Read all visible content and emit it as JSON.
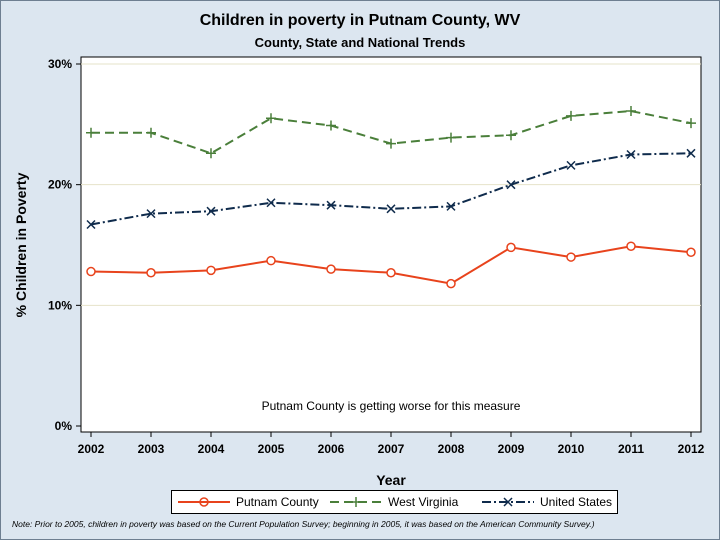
{
  "chart_data": {
    "type": "line",
    "title": "Children in poverty in Putnam County, WV",
    "subtitle": "County, State and National Trends",
    "xlabel": "Year",
    "ylabel": "% Children in Poverty",
    "x": [
      2002,
      2003,
      2004,
      2005,
      2006,
      2007,
      2008,
      2009,
      2010,
      2011,
      2012
    ],
    "xtick_labels": [
      "2002",
      "2003",
      "2004",
      "2005",
      "2006",
      "2007",
      "2008",
      "2009",
      "2010",
      "2011",
      "2012"
    ],
    "ylim": [
      0,
      30
    ],
    "yticks": [
      0,
      10,
      20,
      30
    ],
    "ytick_labels": [
      "0%",
      "10%",
      "20%",
      "30%"
    ],
    "grid": true,
    "legend_position": "bottom",
    "annotation": "Putnam County is getting worse for this measure",
    "note": "Note: Prior to 2005, children in poverty was based on the Current Population Survey; beginning in 2005, it was based on the American Community Survey.)",
    "series": [
      {
        "name": "Putnam County",
        "color": "#e8431c",
        "marker": "circle",
        "dash": "solid",
        "values": [
          12.8,
          12.7,
          12.9,
          13.7,
          13.0,
          12.7,
          11.8,
          14.8,
          14.0,
          14.9,
          14.4
        ]
      },
      {
        "name": "West Virginia",
        "color": "#4a7f3a",
        "marker": "plus",
        "dash": "dashed",
        "values": [
          24.3,
          24.3,
          22.6,
          25.5,
          24.9,
          23.4,
          23.9,
          24.1,
          25.7,
          26.1,
          25.1
        ]
      },
      {
        "name": "United States",
        "color": "#0f2b4c",
        "marker": "x",
        "dash": "dashdot",
        "values": [
          16.7,
          17.6,
          17.8,
          18.5,
          18.3,
          18.0,
          18.2,
          20.0,
          21.6,
          22.5,
          22.6
        ]
      }
    ]
  }
}
